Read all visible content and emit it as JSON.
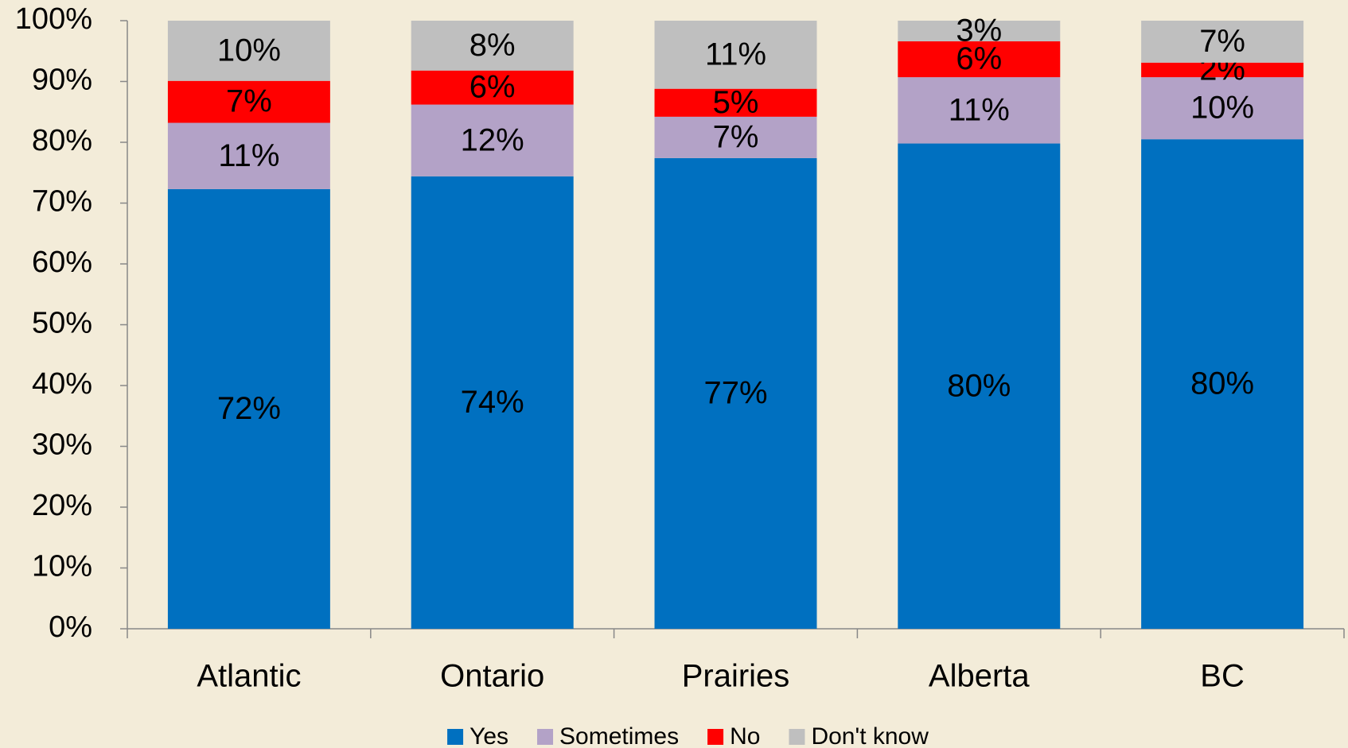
{
  "chart_data": {
    "type": "bar",
    "stacked": true,
    "categories": [
      "Atlantic",
      "Ontario",
      "Prairies",
      "Alberta",
      "BC"
    ],
    "series": [
      {
        "name": "Yes",
        "color": "#0070c0",
        "values": [
          72.3,
          74.4,
          77.4,
          79.8,
          80.5
        ],
        "value_labels": [
          "72%",
          "74%",
          "77%",
          "80%",
          "80%"
        ]
      },
      {
        "name": "Sometimes",
        "color": "#b3a2c7",
        "values": [
          10.9,
          11.8,
          6.8,
          10.9,
          10.2
        ],
        "value_labels": [
          "11%",
          "12%",
          "7%",
          "11%",
          "10%"
        ]
      },
      {
        "name": "No",
        "color": "#ff0000",
        "values": [
          6.9,
          5.6,
          4.6,
          5.9,
          2.4
        ],
        "value_labels": [
          "7%",
          "6%",
          "5%",
          "6%",
          "2%"
        ]
      },
      {
        "name": "Don't know",
        "color": "#bfbfbf",
        "values": [
          9.9,
          8.2,
          11.2,
          3.4,
          6.9
        ],
        "value_labels": [
          "10%",
          "8%",
          "11%",
          "3%",
          "7%"
        ]
      }
    ],
    "ylim": [
      0,
      100
    ],
    "yticks": [
      {
        "value": 0,
        "label": "0%"
      },
      {
        "value": 10,
        "label": "10%"
      },
      {
        "value": 20,
        "label": "20%"
      },
      {
        "value": 30,
        "label": "30%"
      },
      {
        "value": 40,
        "label": "40%"
      },
      {
        "value": 50,
        "label": "50%"
      },
      {
        "value": 60,
        "label": "60%"
      },
      {
        "value": 70,
        "label": "70%"
      },
      {
        "value": 80,
        "label": "80%"
      },
      {
        "value": 90,
        "label": "90%"
      },
      {
        "value": 100,
        "label": "100%"
      }
    ],
    "grid": false,
    "legend": "bottom"
  }
}
